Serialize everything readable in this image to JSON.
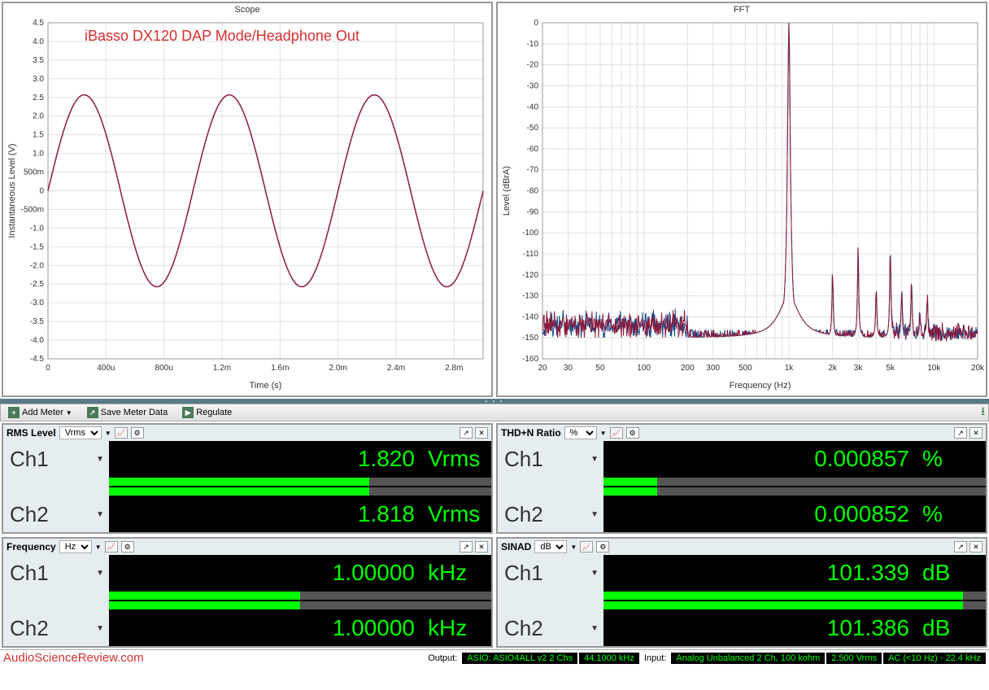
{
  "overlay_text": "iBasso DX120 DAP Mode/Headphone Out",
  "overlay_color": "#d32f2f",
  "scope_chart": {
    "title": "Scope",
    "xlabel": "Time (s)",
    "ylabel": "Instantaneous Level (V)",
    "xlim": [
      0,
      0.003
    ],
    "ylim": [
      -4.5,
      4.5
    ],
    "xticks": [
      "0",
      "400u",
      "800u",
      "1.2m",
      "1.6m",
      "2.0m",
      "2.4m",
      "2.8m"
    ],
    "yticks": [
      "-4.5",
      "-4.0",
      "-3.5",
      "-3.0",
      "-2.5",
      "-2.0",
      "-1.5",
      "-1.0",
      "-500m",
      "0",
      "500m",
      "1.0",
      "1.5",
      "2.0",
      "2.5",
      "3.0",
      "3.5",
      "4.0",
      "4.5"
    ],
    "amplitude": 2.57,
    "frequency_hz": 1000,
    "line_color": "#8b1a3a",
    "background_color": "#ffffff",
    "grid_color": "#e0e0e0"
  },
  "fft_chart": {
    "title": "FFT",
    "xlabel": "Frequency (Hz)",
    "ylabel": "Level (dBrA)",
    "xlim": [
      20,
      20000
    ],
    "ylim": [
      -160,
      0
    ],
    "xticks": [
      "20",
      "30",
      "50",
      "100",
      "200",
      "300",
      "500",
      "1k",
      "2k",
      "3k",
      "5k",
      "10k",
      "20k"
    ],
    "yticks": [
      "-160",
      "-150",
      "-140",
      "-130",
      "-120",
      "-110",
      "-100",
      "-90",
      "-80",
      "-70",
      "-60",
      "-50",
      "-40",
      "-30",
      "-20",
      "-10",
      "0"
    ],
    "fundamental_hz": 1000,
    "fundamental_db": 0,
    "noise_floor_db": -150,
    "harmonics": [
      {
        "hz": 2000,
        "db": -118
      },
      {
        "hz": 3000,
        "db": -105
      },
      {
        "hz": 4000,
        "db": -126
      },
      {
        "hz": 5000,
        "db": -107
      },
      {
        "hz": 6000,
        "db": -130
      },
      {
        "hz": 7000,
        "db": -124
      },
      {
        "hz": 8000,
        "db": -138
      },
      {
        "hz": 9000,
        "db": -130
      }
    ],
    "line_color_ch1": "#1a4a8b",
    "line_color_ch2": "#8b1a3a",
    "background_color": "#ffffff",
    "grid_color": "#e0e0e0"
  },
  "toolbar": {
    "add_meter": "Add Meter",
    "save_meter": "Save Meter Data",
    "regulate": "Regulate"
  },
  "meters": {
    "rms": {
      "title": "RMS Level",
      "unit_select": "Vrms",
      "ch1": {
        "label": "Ch1",
        "value": "1.820",
        "unit": "Vrms",
        "fill_pct": 68
      },
      "ch2": {
        "label": "Ch2",
        "value": "1.818",
        "unit": "Vrms",
        "fill_pct": 68
      }
    },
    "thdn": {
      "title": "THD+N Ratio",
      "unit_select": "%",
      "ch1": {
        "label": "Ch1",
        "value": "0.000857",
        "unit": "%",
        "fill_pct": 14
      },
      "ch2": {
        "label": "Ch2",
        "value": "0.000852",
        "unit": "%",
        "fill_pct": 14
      }
    },
    "freq": {
      "title": "Frequency",
      "unit_select": "Hz",
      "ch1": {
        "label": "Ch1",
        "value": "1.00000",
        "unit": "kHz",
        "fill_pct": 50
      },
      "ch2": {
        "label": "Ch2",
        "value": "1.00000",
        "unit": "kHz",
        "fill_pct": 50
      }
    },
    "sinad": {
      "title": "SINAD",
      "unit_select": "dB",
      "ch1": {
        "label": "Ch1",
        "value": "101.339",
        "unit": "dB",
        "fill_pct": 94
      },
      "ch2": {
        "label": "Ch2",
        "value": "101.386",
        "unit": "dB",
        "fill_pct": 94
      }
    }
  },
  "status": {
    "site": "AudioScienceReview.com",
    "output_label": "Output:",
    "output_device": "ASIO: ASIO4ALL v2 2 Chs",
    "output_sr": "44.1000 kHz",
    "input_label": "Input:",
    "input_device": "Analog Unbalanced 2 Ch, 100 kohm",
    "input_level": "2.500 Vrms",
    "input_bw": "AC (<10 Hz) - 22.4 kHz"
  },
  "colors": {
    "meter_bg": "#e6edf0",
    "meter_value_bg": "#000000",
    "meter_value_fg": "#00ff00",
    "panel_border": "#999999"
  }
}
